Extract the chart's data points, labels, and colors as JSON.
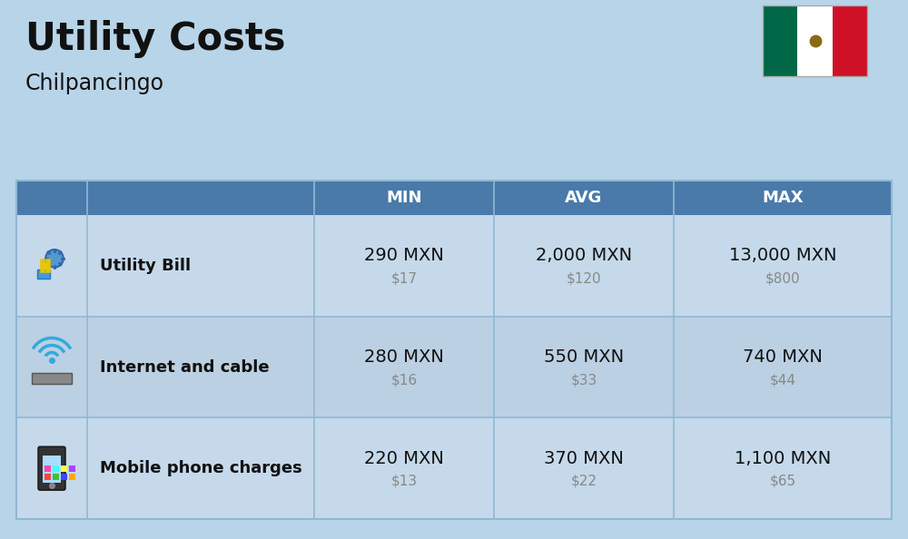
{
  "title": "Utility Costs",
  "subtitle": "Chilpancingo",
  "background_color": "#b8d4e8",
  "header_color": "#4a7aaa",
  "header_text_color": "#ffffff",
  "row_color_odd": "#c5d9ea",
  "row_color_even": "#bcd0e3",
  "col_headers": [
    "MIN",
    "AVG",
    "MAX"
  ],
  "rows": [
    {
      "label": "Utility Bill",
      "min_mxn": "290 MXN",
      "min_usd": "$17",
      "avg_mxn": "2,000 MXN",
      "avg_usd": "$120",
      "max_mxn": "13,000 MXN",
      "max_usd": "$800"
    },
    {
      "label": "Internet and cable",
      "min_mxn": "280 MXN",
      "min_usd": "$16",
      "avg_mxn": "550 MXN",
      "avg_usd": "$33",
      "max_mxn": "740 MXN",
      "max_usd": "$44"
    },
    {
      "label": "Mobile phone charges",
      "min_mxn": "220 MXN",
      "min_usd": "$13",
      "avg_mxn": "370 MXN",
      "avg_usd": "$22",
      "max_mxn": "1,100 MXN",
      "max_usd": "$65"
    }
  ],
  "title_fontsize": 30,
  "subtitle_fontsize": 17,
  "header_fontsize": 13,
  "label_fontsize": 13,
  "value_fontsize": 14,
  "usd_fontsize": 11,
  "usd_color": "#888888",
  "label_color": "#111111",
  "divider_color": "#90b8d4",
  "flag_green": "#006847",
  "flag_white": "#ffffff",
  "flag_red": "#ce1126",
  "flag_eagle": "#8B6914"
}
